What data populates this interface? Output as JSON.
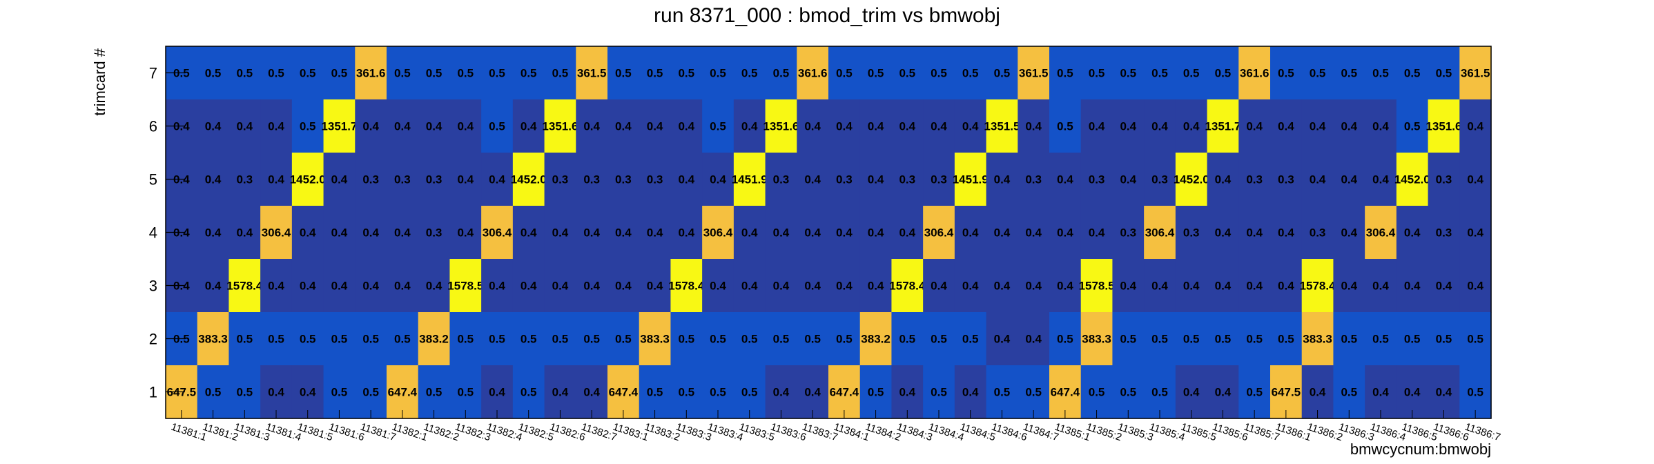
{
  "chart_data": {
    "type": "heatmap",
    "title": "run 8371_000 : bmod_trim vs bmwobj",
    "xlabel": "bmwcycnum:bmwobj",
    "ylabel": "trimcard #",
    "y_categories": [
      "1",
      "2",
      "3",
      "4",
      "5",
      "6",
      "7"
    ],
    "x_categories": [
      "11381:1",
      "11381:2",
      "11381:3",
      "11381:4",
      "11381:5",
      "11381:6",
      "11381:7",
      "11382:1",
      "11382:2",
      "11382:3",
      "11382:4",
      "11382:5",
      "11382:6",
      "11382:7",
      "11383:1",
      "11383:2",
      "11383:3",
      "11383:4",
      "11383:5",
      "11383:6",
      "11383:7",
      "11384:1",
      "11384:2",
      "11384:3",
      "11384:4",
      "11384:5",
      "11384:6",
      "11384:7",
      "11385:1",
      "11385:2",
      "11385:3",
      "11385:4",
      "11385:5",
      "11385:6",
      "11385:7",
      "11386:1",
      "11386:2",
      "11386:3",
      "11386:4",
      "11386:5",
      "11386:6",
      "11386:7"
    ],
    "rows": [
      {
        "y": "7",
        "values": [
          "0.5",
          "0.5",
          "0.5",
          "0.5",
          "0.5",
          "0.5",
          "361.6",
          "0.5",
          "0.5",
          "0.5",
          "0.5",
          "0.5",
          "0.5",
          "361.5",
          "0.5",
          "0.5",
          "0.5",
          "0.5",
          "0.5",
          "0.5",
          "361.6",
          "0.5",
          "0.5",
          "0.5",
          "0.5",
          "0.5",
          "0.5",
          "361.5",
          "0.5",
          "0.5",
          "0.5",
          "0.5",
          "0.5",
          "0.5",
          "361.6",
          "0.5",
          "0.5",
          "0.5",
          "0.5",
          "0.5",
          "0.5",
          "361.5"
        ]
      },
      {
        "y": "6",
        "values": [
          "0.4",
          "0.4",
          "0.4",
          "0.4",
          "0.5",
          "1351.7",
          "0.4",
          "0.4",
          "0.4",
          "0.4",
          "0.5",
          "0.4",
          "1351.6",
          "0.4",
          "0.4",
          "0.4",
          "0.4",
          "0.5",
          "0.4",
          "1351.6",
          "0.4",
          "0.4",
          "0.4",
          "0.4",
          "0.4",
          "0.4",
          "1351.5",
          "0.4",
          "0.5",
          "0.4",
          "0.4",
          "0.4",
          "0.4",
          "1351.7",
          "0.4",
          "0.4",
          "0.4",
          "0.4",
          "0.4",
          "0.5",
          "1351.6",
          "0.4"
        ]
      },
      {
        "y": "5",
        "values": [
          "0.4",
          "0.4",
          "0.3",
          "0.4",
          "1452.0",
          "0.4",
          "0.3",
          "0.3",
          "0.3",
          "0.4",
          "0.4",
          "1452.0",
          "0.3",
          "0.3",
          "0.3",
          "0.3",
          "0.4",
          "0.4",
          "1451.9",
          "0.3",
          "0.4",
          "0.3",
          "0.4",
          "0.3",
          "0.3",
          "1451.9",
          "0.4",
          "0.3",
          "0.4",
          "0.3",
          "0.4",
          "0.3",
          "1452.0",
          "0.4",
          "0.3",
          "0.3",
          "0.4",
          "0.4",
          "0.4",
          "1452.0",
          "0.3",
          "0.4"
        ]
      },
      {
        "y": "4",
        "values": [
          "0.4",
          "0.4",
          "0.4",
          "306.4",
          "0.4",
          "0.4",
          "0.4",
          "0.4",
          "0.3",
          "0.4",
          "306.4",
          "0.4",
          "0.4",
          "0.4",
          "0.4",
          "0.4",
          "0.4",
          "306.4",
          "0.4",
          "0.4",
          "0.4",
          "0.4",
          "0.4",
          "0.4",
          "306.4",
          "0.4",
          "0.4",
          "0.4",
          "0.4",
          "0.4",
          "0.3",
          "306.4",
          "0.3",
          "0.4",
          "0.4",
          "0.4",
          "0.3",
          "0.4",
          "306.4",
          "0.4",
          "0.3",
          "0.4"
        ]
      },
      {
        "y": "3",
        "values": [
          "0.4",
          "0.4",
          "1578.4",
          "0.4",
          "0.4",
          "0.4",
          "0.4",
          "0.4",
          "0.4",
          "1578.5",
          "0.4",
          "0.4",
          "0.4",
          "0.4",
          "0.4",
          "0.4",
          "1578.4",
          "0.4",
          "0.4",
          "0.4",
          "0.4",
          "0.4",
          "0.4",
          "1578.4",
          "0.4",
          "0.4",
          "0.4",
          "0.4",
          "0.4",
          "1578.5",
          "0.4",
          "0.4",
          "0.4",
          "0.4",
          "0.4",
          "0.4",
          "1578.4",
          "0.4",
          "0.4",
          "0.4",
          "0.4",
          "0.4"
        ]
      },
      {
        "y": "2",
        "values": [
          "0.5",
          "383.3",
          "0.5",
          "0.5",
          "0.5",
          "0.5",
          "0.5",
          "0.5",
          "383.2",
          "0.5",
          "0.5",
          "0.5",
          "0.5",
          "0.5",
          "0.5",
          "383.3",
          "0.5",
          "0.5",
          "0.5",
          "0.5",
          "0.5",
          "0.5",
          "383.2",
          "0.5",
          "0.5",
          "0.5",
          "0.4",
          "0.4",
          "0.5",
          "383.3",
          "0.5",
          "0.5",
          "0.5",
          "0.5",
          "0.5",
          "0.5",
          "383.3",
          "0.5",
          "0.5",
          "0.5",
          "0.5",
          "0.5"
        ]
      },
      {
        "y": "1",
        "values": [
          "647.5",
          "0.5",
          "0.5",
          "0.4",
          "0.4",
          "0.5",
          "0.5",
          "647.4",
          "0.5",
          "0.5",
          "0.4",
          "0.5",
          "0.4",
          "0.4",
          "647.4",
          "0.5",
          "0.5",
          "0.5",
          "0.5",
          "0.4",
          "0.4",
          "647.4",
          "0.5",
          "0.4",
          "0.5",
          "0.4",
          "0.5",
          "0.5",
          "647.4",
          "0.5",
          "0.5",
          "0.5",
          "0.4",
          "0.4",
          "0.5",
          "647.5",
          "0.4",
          "0.5",
          "0.4",
          "0.4",
          "0.4",
          "0.5"
        ]
      }
    ],
    "colors": {
      "low_blue": "#2a3fa0",
      "mid_blue": "#1452c8",
      "dark_cell": "#2233a8",
      "gold": "#f5c040",
      "yellow": "#f8f814",
      "axis": "#000000",
      "background": "#ffffff"
    },
    "grid": false,
    "legend": "none"
  }
}
